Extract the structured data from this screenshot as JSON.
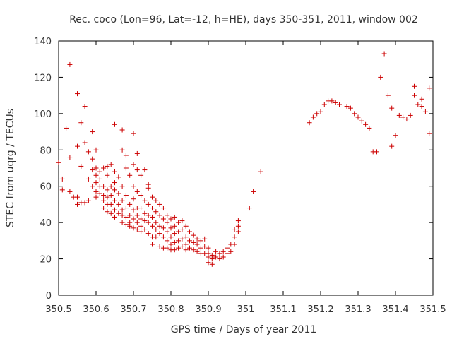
{
  "chart_data": {
    "type": "scatter",
    "title": "Rec. coco (Lon=96, Lat=-12, h=HE), days 350-351, 2011, window 002",
    "xlabel": "GPS time / Days of year 2011",
    "ylabel": "STEC from uqrg / TECUs",
    "xlim": [
      350.5,
      351.5
    ],
    "ylim": [
      0,
      140
    ],
    "x_ticks": [
      350.5,
      350.6,
      350.7,
      350.8,
      350.9,
      351.0,
      351.1,
      351.2,
      351.3,
      351.4,
      351.5
    ],
    "x_tick_labels": [
      "350.5",
      "350.6",
      "350.7",
      "350.8",
      "350.9",
      "351",
      "351.1",
      "351.2",
      "351.3",
      "351.4",
      "351.5"
    ],
    "y_ticks": [
      0,
      20,
      40,
      60,
      80,
      100,
      120,
      140
    ],
    "y_tick_labels": [
      "0",
      "20",
      "40",
      "60",
      "80",
      "100",
      "120",
      "140"
    ],
    "grid": false,
    "marker": "+",
    "color": "#cc0000",
    "points": [
      [
        350.5,
        73
      ],
      [
        350.51,
        58
      ],
      [
        350.51,
        64
      ],
      [
        350.52,
        92
      ],
      [
        350.53,
        127
      ],
      [
        350.53,
        76
      ],
      [
        350.53,
        57
      ],
      [
        350.54,
        54
      ],
      [
        350.55,
        111
      ],
      [
        350.55,
        82
      ],
      [
        350.55,
        54
      ],
      [
        350.55,
        50
      ],
      [
        350.56,
        95
      ],
      [
        350.56,
        71
      ],
      [
        350.56,
        51
      ],
      [
        350.57,
        51
      ],
      [
        350.57,
        104
      ],
      [
        350.57,
        84
      ],
      [
        350.58,
        79
      ],
      [
        350.58,
        64
      ],
      [
        350.58,
        52
      ],
      [
        350.59,
        90
      ],
      [
        350.59,
        75
      ],
      [
        350.59,
        69
      ],
      [
        350.59,
        60
      ],
      [
        350.6,
        80
      ],
      [
        350.6,
        70
      ],
      [
        350.6,
        66
      ],
      [
        350.6,
        62
      ],
      [
        350.6,
        57
      ],
      [
        350.6,
        54
      ],
      [
        350.61,
        68
      ],
      [
        350.61,
        64
      ],
      [
        350.61,
        60
      ],
      [
        350.61,
        56
      ],
      [
        350.62,
        70
      ],
      [
        350.62,
        60
      ],
      [
        350.62,
        55
      ],
      [
        350.62,
        52
      ],
      [
        350.62,
        48
      ],
      [
        350.63,
        71
      ],
      [
        350.63,
        66
      ],
      [
        350.63,
        58
      ],
      [
        350.63,
        54
      ],
      [
        350.63,
        50
      ],
      [
        350.63,
        46
      ],
      [
        350.64,
        72
      ],
      [
        350.64,
        60
      ],
      [
        350.64,
        55
      ],
      [
        350.64,
        50
      ],
      [
        350.64,
        45
      ],
      [
        350.65,
        94
      ],
      [
        350.65,
        68
      ],
      [
        350.65,
        62
      ],
      [
        350.65,
        58
      ],
      [
        350.65,
        52
      ],
      [
        350.65,
        47
      ],
      [
        350.65,
        43
      ],
      [
        350.66,
        65
      ],
      [
        350.66,
        56
      ],
      [
        350.66,
        50
      ],
      [
        350.66,
        45
      ],
      [
        350.67,
        91
      ],
      [
        350.67,
        80
      ],
      [
        350.67,
        60
      ],
      [
        350.67,
        52
      ],
      [
        350.67,
        47
      ],
      [
        350.67,
        44
      ],
      [
        350.67,
        40
      ],
      [
        350.68,
        77
      ],
      [
        350.68,
        70
      ],
      [
        350.68,
        55
      ],
      [
        350.68,
        48
      ],
      [
        350.68,
        43
      ],
      [
        350.68,
        39
      ],
      [
        350.69,
        66
      ],
      [
        350.69,
        50
      ],
      [
        350.69,
        44
      ],
      [
        350.69,
        40
      ],
      [
        350.69,
        38
      ],
      [
        350.7,
        89
      ],
      [
        350.7,
        72
      ],
      [
        350.7,
        60
      ],
      [
        350.7,
        53
      ],
      [
        350.7,
        47
      ],
      [
        350.7,
        42
      ],
      [
        350.7,
        37
      ],
      [
        350.71,
        78
      ],
      [
        350.71,
        69
      ],
      [
        350.71,
        57
      ],
      [
        350.71,
        48
      ],
      [
        350.71,
        44
      ],
      [
        350.71,
        40
      ],
      [
        350.71,
        36
      ],
      [
        350.72,
        66
      ],
      [
        350.72,
        55
      ],
      [
        350.72,
        48
      ],
      [
        350.72,
        42
      ],
      [
        350.72,
        38
      ],
      [
        350.72,
        35
      ],
      [
        350.73,
        69
      ],
      [
        350.73,
        52
      ],
      [
        350.73,
        45
      ],
      [
        350.73,
        41
      ],
      [
        350.73,
        36
      ],
      [
        350.74,
        61
      ],
      [
        350.74,
        59
      ],
      [
        350.74,
        50
      ],
      [
        350.74,
        44
      ],
      [
        350.74,
        40
      ],
      [
        350.74,
        34
      ],
      [
        350.75,
        54
      ],
      [
        350.75,
        48
      ],
      [
        350.75,
        43
      ],
      [
        350.75,
        38
      ],
      [
        350.75,
        32
      ],
      [
        350.75,
        28
      ],
      [
        350.76,
        52
      ],
      [
        350.76,
        46
      ],
      [
        350.76,
        40
      ],
      [
        350.76,
        36
      ],
      [
        350.76,
        32
      ],
      [
        350.77,
        50
      ],
      [
        350.77,
        44
      ],
      [
        350.77,
        38
      ],
      [
        350.77,
        34
      ],
      [
        350.77,
        27
      ],
      [
        350.78,
        48
      ],
      [
        350.78,
        42
      ],
      [
        350.78,
        37
      ],
      [
        350.78,
        32
      ],
      [
        350.78,
        26
      ],
      [
        350.79,
        44
      ],
      [
        350.79,
        40
      ],
      [
        350.79,
        35
      ],
      [
        350.79,
        30
      ],
      [
        350.79,
        26
      ],
      [
        350.8,
        42
      ],
      [
        350.8,
        37
      ],
      [
        350.8,
        32
      ],
      [
        350.8,
        28
      ],
      [
        350.8,
        25
      ],
      [
        350.81,
        43
      ],
      [
        350.81,
        38
      ],
      [
        350.81,
        34
      ],
      [
        350.81,
        29
      ],
      [
        350.81,
        25
      ],
      [
        350.82,
        40
      ],
      [
        350.82,
        35
      ],
      [
        350.82,
        30
      ],
      [
        350.82,
        26
      ],
      [
        350.83,
        41
      ],
      [
        350.83,
        36
      ],
      [
        350.83,
        31
      ],
      [
        350.83,
        27
      ],
      [
        350.84,
        38
      ],
      [
        350.84,
        32
      ],
      [
        350.84,
        28
      ],
      [
        350.84,
        25
      ],
      [
        350.85,
        35
      ],
      [
        350.85,
        30
      ],
      [
        350.85,
        26
      ],
      [
        350.86,
        33
      ],
      [
        350.86,
        29
      ],
      [
        350.86,
        25
      ],
      [
        350.87,
        31
      ],
      [
        350.87,
        28
      ],
      [
        350.87,
        24
      ],
      [
        350.88,
        30
      ],
      [
        350.88,
        26
      ],
      [
        350.88,
        23
      ],
      [
        350.89,
        31
      ],
      [
        350.89,
        27
      ],
      [
        350.89,
        23
      ],
      [
        350.9,
        26
      ],
      [
        350.9,
        23
      ],
      [
        350.9,
        21
      ],
      [
        350.9,
        18
      ],
      [
        350.91,
        22
      ],
      [
        350.91,
        20
      ],
      [
        350.91,
        17
      ],
      [
        350.92,
        24
      ],
      [
        350.92,
        21
      ],
      [
        350.93,
        23
      ],
      [
        350.93,
        20
      ],
      [
        350.94,
        24
      ],
      [
        350.94,
        21
      ],
      [
        350.95,
        26
      ],
      [
        350.95,
        23
      ],
      [
        350.96,
        28
      ],
      [
        350.96,
        24
      ],
      [
        350.97,
        36
      ],
      [
        350.97,
        32
      ],
      [
        350.97,
        28
      ],
      [
        350.98,
        41
      ],
      [
        350.98,
        38
      ],
      [
        350.98,
        35
      ],
      [
        351.01,
        48
      ],
      [
        351.02,
        57
      ],
      [
        351.04,
        68
      ],
      [
        351.17,
        95
      ],
      [
        351.18,
        98
      ],
      [
        351.19,
        100
      ],
      [
        351.2,
        101
      ],
      [
        351.21,
        105
      ],
      [
        351.22,
        107
      ],
      [
        351.23,
        107
      ],
      [
        351.24,
        106
      ],
      [
        351.25,
        105
      ],
      [
        351.27,
        104
      ],
      [
        351.28,
        103
      ],
      [
        351.29,
        100
      ],
      [
        351.3,
        98
      ],
      [
        351.31,
        96
      ],
      [
        351.32,
        94
      ],
      [
        351.33,
        92
      ],
      [
        351.34,
        79
      ],
      [
        351.35,
        79
      ],
      [
        351.36,
        120
      ],
      [
        351.37,
        133
      ],
      [
        351.38,
        110
      ],
      [
        351.39,
        103
      ],
      [
        351.39,
        82
      ],
      [
        351.4,
        88
      ],
      [
        351.41,
        99
      ],
      [
        351.42,
        98
      ],
      [
        351.43,
        97
      ],
      [
        351.44,
        99
      ],
      [
        351.45,
        110
      ],
      [
        351.45,
        115
      ],
      [
        351.46,
        105
      ],
      [
        351.47,
        104
      ],
      [
        351.47,
        108
      ],
      [
        351.48,
        101
      ],
      [
        351.49,
        114
      ],
      [
        351.49,
        89
      ]
    ]
  }
}
